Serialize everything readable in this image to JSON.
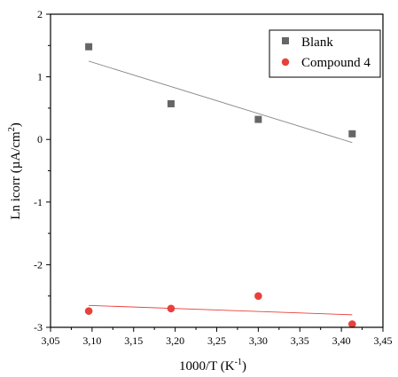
{
  "chart_data": {
    "type": "scatter",
    "xlabel_main": "1000/T (K",
    "xlabel_sup": "-1",
    "xlabel_end": ")",
    "ylabel_main": "Ln icorr (µA/cm",
    "ylabel_sup": "2",
    "ylabel_end": ")",
    "xlim": [
      3.05,
      3.45
    ],
    "ylim": [
      -3,
      2
    ],
    "x_ticks": [
      3.05,
      3.1,
      3.15,
      3.2,
      3.25,
      3.3,
      3.35,
      3.4,
      3.45
    ],
    "x_tick_labels": [
      "3,05",
      "3,10",
      "3,15",
      "3,20",
      "3,25",
      "3,30",
      "3,35",
      "3,40",
      "3,45"
    ],
    "y_ticks": [
      -3,
      -2,
      -1,
      0,
      1,
      2
    ],
    "y_tick_labels": [
      "-3",
      "-2",
      "-1",
      "0",
      "1",
      "2"
    ],
    "legend_position": "top-right",
    "series": [
      {
        "name": "Blank",
        "marker": "square",
        "marker_color": "#666666",
        "fit_color": "#888888",
        "x": [
          3.096,
          3.195,
          3.3,
          3.413
        ],
        "y": [
          1.48,
          0.57,
          0.32,
          0.09
        ],
        "fit": {
          "x": [
            3.096,
            3.413
          ],
          "y": [
            1.25,
            -0.05
          ]
        }
      },
      {
        "name": "Compound 4",
        "marker": "circle",
        "marker_color": "#e8403b",
        "fit_color": "#e8403b",
        "x": [
          3.096,
          3.195,
          3.3,
          3.413
        ],
        "y": [
          -2.74,
          -2.7,
          -2.5,
          -2.95
        ],
        "fit": {
          "x": [
            3.096,
            3.413
          ],
          "y": [
            -2.65,
            -2.8
          ]
        }
      }
    ]
  }
}
